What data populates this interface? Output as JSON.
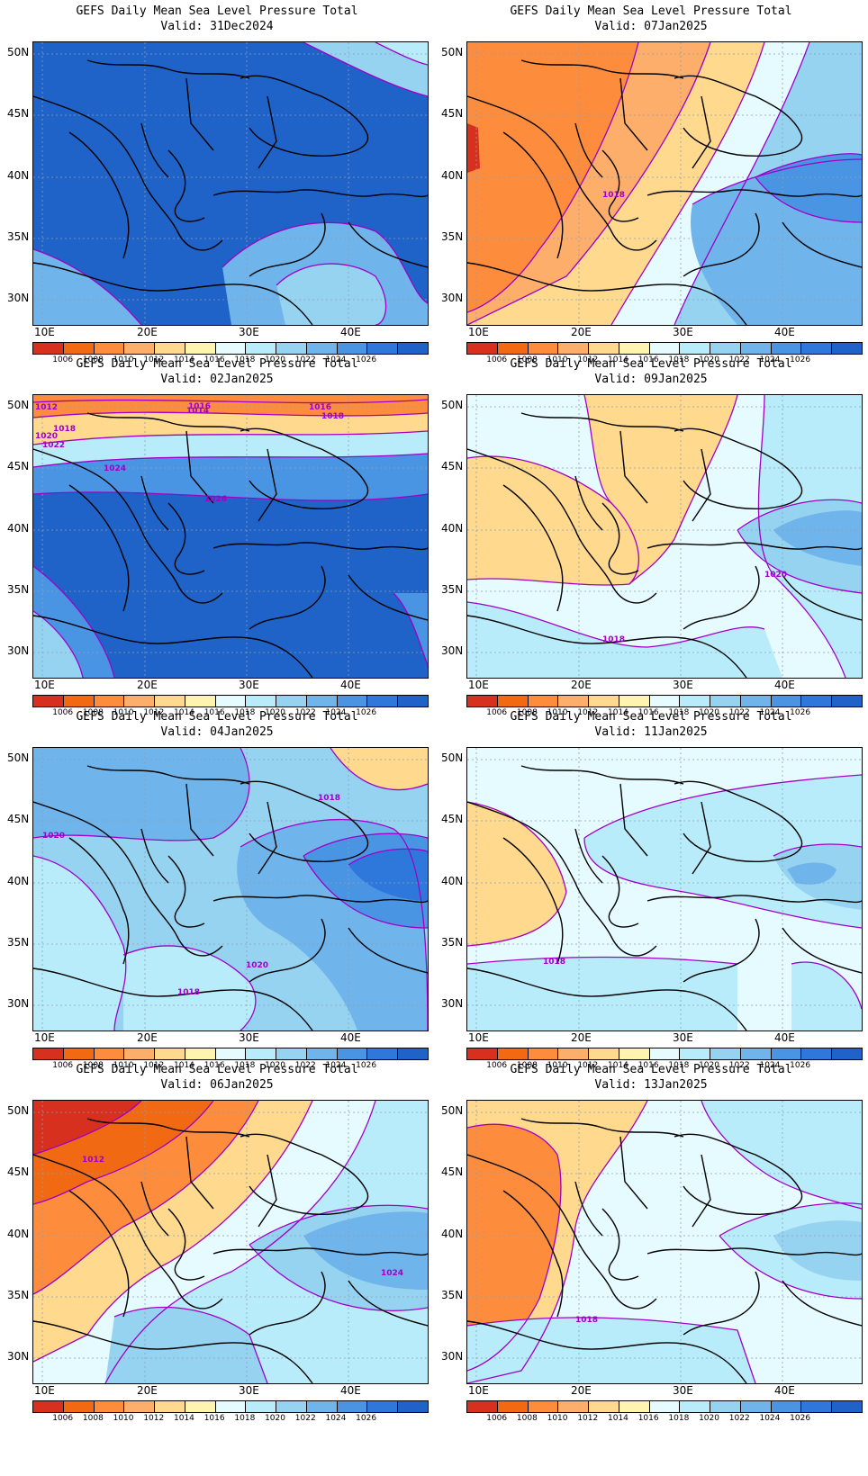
{
  "title": "GEFS Daily Mean Sea Level Pressure Total",
  "valid_prefix": "Valid:",
  "panels": [
    {
      "id": "p1",
      "valid": "31Dec2024",
      "contour_labels": []
    },
    {
      "id": "p2",
      "valid": "07Jan2025",
      "contour_labels": [
        "1018"
      ]
    },
    {
      "id": "p3",
      "valid": "02Jan2025",
      "contour_labels": [
        "1012",
        "1014",
        "1016",
        "1016",
        "1018",
        "1018",
        "1020",
        "1022",
        "1024",
        "1026"
      ]
    },
    {
      "id": "p4",
      "valid": "09Jan2025",
      "contour_labels": [
        "1020",
        "1018"
      ]
    },
    {
      "id": "p5",
      "valid": "04Jan2025",
      "contour_labels": [
        "1018",
        "1020",
        "1020",
        "1018"
      ]
    },
    {
      "id": "p6",
      "valid": "11Jan2025",
      "contour_labels": [
        "1018"
      ]
    },
    {
      "id": "p7",
      "valid": "06Jan2025",
      "contour_labels": [
        "1012",
        "1024"
      ]
    },
    {
      "id": "p8",
      "valid": "13Jan2025",
      "contour_labels": [
        "1018"
      ]
    }
  ],
  "lat_labels": [
    "50N",
    "45N",
    "40N",
    "35N",
    "30N"
  ],
  "lon_labels": [
    "10E",
    "20E",
    "30E",
    "40E"
  ],
  "colorbar": {
    "labels": [
      "1006",
      "1008",
      "1010",
      "1012",
      "1014",
      "1016",
      "1018",
      "1020",
      "1022",
      "1024",
      "1026"
    ],
    "colors": [
      "#a50f15",
      "#d7301f",
      "#f16913",
      "#fd8d3c",
      "#fdae6b",
      "#fed98e",
      "#fff3b0",
      "#e6fbff",
      "#b9ecfa",
      "#96d3f0",
      "#6fb4ea",
      "#4a94e4",
      "#2e78dc",
      "#1f62c8"
    ]
  }
}
